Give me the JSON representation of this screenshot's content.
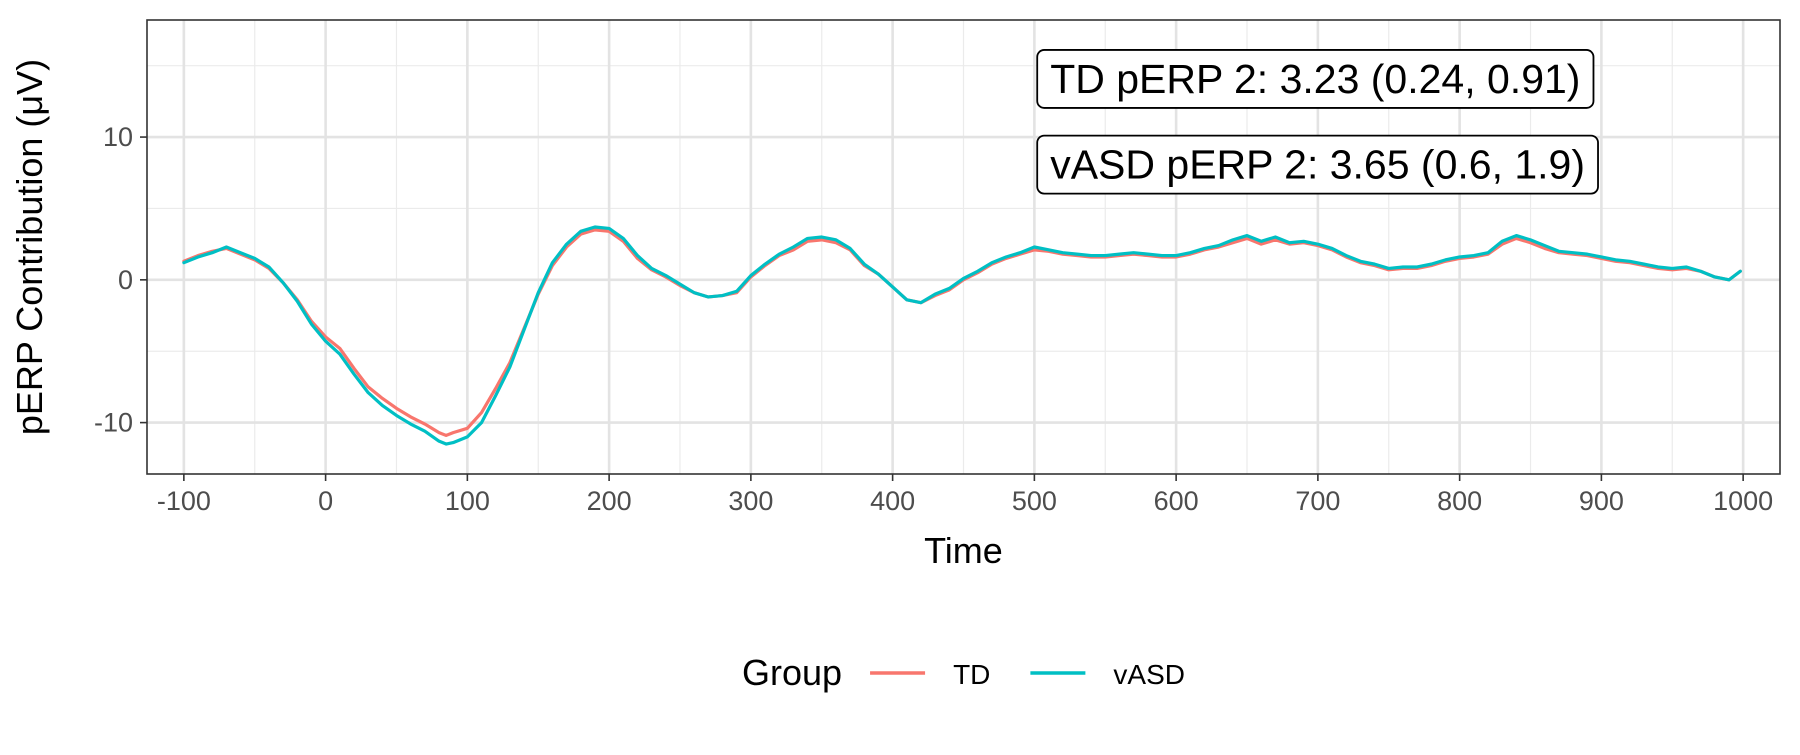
{
  "chart_data": {
    "type": "line",
    "title": "",
    "xlabel": "Time",
    "ylabel": "pERP Contribution (μV)",
    "xlim": [
      -126,
      1026
    ],
    "ylim": [
      -13.6,
      18.2
    ],
    "xticks": [
      -100,
      0,
      100,
      200,
      300,
      400,
      500,
      600,
      700,
      800,
      900,
      1000
    ],
    "xtick_labels": [
      "-100",
      "0",
      "100",
      "200",
      "300",
      "400",
      "500",
      "600",
      "700",
      "800",
      "900",
      "1000"
    ],
    "yticks": [
      -10,
      0,
      10
    ],
    "ytick_labels": [
      "-10",
      "0",
      "10"
    ],
    "grid": true,
    "legend": {
      "title": "Group",
      "position": "bottom"
    },
    "annotations": [
      {
        "text": "TD pERP 2: 3.23 (0.24, 0.91)",
        "x": 502,
        "y": 14
      },
      {
        "text": "vASD pERP 2: 3.65 (0.6, 1.9)",
        "x": 502,
        "y": 8
      }
    ],
    "series": [
      {
        "name": "TD",
        "color": "#F8766D",
        "x": [
          -100,
          -90,
          -80,
          -70,
          -60,
          -50,
          -40,
          -30,
          -20,
          -10,
          0,
          10,
          20,
          30,
          40,
          50,
          60,
          70,
          80,
          85,
          90,
          100,
          110,
          120,
          130,
          140,
          150,
          160,
          170,
          180,
          190,
          200,
          210,
          220,
          230,
          240,
          250,
          260,
          270,
          280,
          290,
          300,
          310,
          320,
          330,
          340,
          350,
          360,
          370,
          380,
          390,
          400,
          410,
          420,
          430,
          440,
          450,
          460,
          470,
          480,
          490,
          500,
          510,
          520,
          530,
          540,
          550,
          560,
          570,
          580,
          590,
          600,
          610,
          620,
          630,
          640,
          650,
          660,
          670,
          680,
          690,
          700,
          710,
          720,
          730,
          740,
          750,
          760,
          770,
          780,
          790,
          800,
          810,
          820,
          830,
          840,
          850,
          860,
          870,
          880,
          890,
          900,
          910,
          920,
          930,
          940,
          950,
          960,
          970,
          980,
          990,
          998
        ],
        "y": [
          1.3,
          1.7,
          2.0,
          2.2,
          1.8,
          1.4,
          0.8,
          -0.2,
          -1.4,
          -2.9,
          -4.0,
          -4.8,
          -6.2,
          -7.5,
          -8.3,
          -9.0,
          -9.6,
          -10.1,
          -10.7,
          -10.9,
          -10.7,
          -10.4,
          -9.3,
          -7.6,
          -5.8,
          -3.4,
          -1.0,
          1.0,
          2.3,
          3.2,
          3.5,
          3.4,
          2.7,
          1.5,
          0.7,
          0.2,
          -0.4,
          -0.9,
          -1.2,
          -1.1,
          -0.9,
          0.2,
          1.0,
          1.7,
          2.1,
          2.7,
          2.8,
          2.6,
          2.1,
          1.0,
          0.4,
          -0.5,
          -1.4,
          -1.6,
          -1.1,
          -0.7,
          0.0,
          0.5,
          1.1,
          1.5,
          1.8,
          2.1,
          2.0,
          1.8,
          1.7,
          1.6,
          1.6,
          1.7,
          1.8,
          1.7,
          1.6,
          1.6,
          1.8,
          2.1,
          2.3,
          2.6,
          2.9,
          2.5,
          2.8,
          2.5,
          2.6,
          2.4,
          2.1,
          1.6,
          1.2,
          1.0,
          0.7,
          0.8,
          0.8,
          1.0,
          1.3,
          1.5,
          1.6,
          1.8,
          2.5,
          2.9,
          2.6,
          2.2,
          1.9,
          1.8,
          1.7,
          1.5,
          1.3,
          1.2,
          1.0,
          0.8,
          0.7,
          0.8,
          0.6,
          0.2,
          0.0,
          0.6
        ]
      },
      {
        "name": "vASD",
        "color": "#00BFC4",
        "x": [
          -100,
          -90,
          -80,
          -70,
          -60,
          -50,
          -40,
          -30,
          -20,
          -10,
          0,
          10,
          20,
          30,
          40,
          50,
          60,
          70,
          80,
          85,
          90,
          100,
          110,
          120,
          130,
          140,
          150,
          160,
          170,
          180,
          190,
          200,
          210,
          220,
          230,
          240,
          250,
          260,
          270,
          280,
          290,
          300,
          310,
          320,
          330,
          340,
          350,
          360,
          370,
          380,
          390,
          400,
          410,
          420,
          430,
          440,
          450,
          460,
          470,
          480,
          490,
          500,
          510,
          520,
          530,
          540,
          550,
          560,
          570,
          580,
          590,
          600,
          610,
          620,
          630,
          640,
          650,
          660,
          670,
          680,
          690,
          700,
          710,
          720,
          730,
          740,
          750,
          760,
          770,
          780,
          790,
          800,
          810,
          820,
          830,
          840,
          850,
          860,
          870,
          880,
          890,
          900,
          910,
          920,
          930,
          940,
          950,
          960,
          970,
          980,
          990,
          998
        ],
        "y": [
          1.2,
          1.6,
          1.9,
          2.3,
          1.9,
          1.5,
          0.9,
          -0.2,
          -1.5,
          -3.1,
          -4.3,
          -5.2,
          -6.6,
          -7.9,
          -8.8,
          -9.5,
          -10.1,
          -10.6,
          -11.3,
          -11.5,
          -11.4,
          -11.0,
          -10.0,
          -8.1,
          -6.1,
          -3.5,
          -0.9,
          1.2,
          2.5,
          3.4,
          3.7,
          3.6,
          2.9,
          1.7,
          0.8,
          0.3,
          -0.3,
          -0.9,
          -1.2,
          -1.1,
          -0.8,
          0.3,
          1.1,
          1.8,
          2.3,
          2.9,
          3.0,
          2.8,
          2.2,
          1.1,
          0.4,
          -0.5,
          -1.4,
          -1.6,
          -1.0,
          -0.6,
          0.1,
          0.6,
          1.2,
          1.6,
          1.9,
          2.3,
          2.1,
          1.9,
          1.8,
          1.7,
          1.7,
          1.8,
          1.9,
          1.8,
          1.7,
          1.7,
          1.9,
          2.2,
          2.4,
          2.8,
          3.1,
          2.7,
          3.0,
          2.6,
          2.7,
          2.5,
          2.2,
          1.7,
          1.3,
          1.1,
          0.8,
          0.9,
          0.9,
          1.1,
          1.4,
          1.6,
          1.7,
          1.9,
          2.7,
          3.1,
          2.8,
          2.4,
          2.0,
          1.9,
          1.8,
          1.6,
          1.4,
          1.3,
          1.1,
          0.9,
          0.8,
          0.9,
          0.6,
          0.2,
          0.0,
          0.6
        ]
      }
    ]
  }
}
